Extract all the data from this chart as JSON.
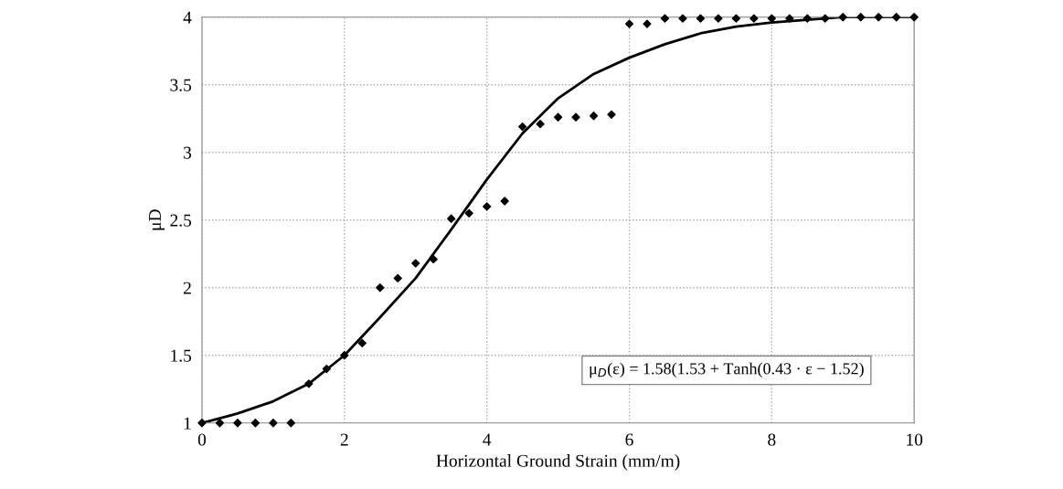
{
  "chart_data": {
    "type": "scatter",
    "xlabel": "Horizontal Ground Strain (mm/m)",
    "ylabel": "μD",
    "annotations": [
      "μ$_{D}$(ε) = 1.58(1.53 + Tanh(0.43 · ε − 1.52)"
    ],
    "xlim": [
      0,
      10
    ],
    "ylim": [
      1,
      4
    ],
    "xticks": [
      0,
      2,
      4,
      6,
      8,
      10
    ],
    "yticks": [
      1,
      1.5,
      2,
      2.5,
      3,
      3.5,
      4
    ],
    "grid": true,
    "series": [
      {
        "color": "#000000",
        "marker": "diamond",
        "x": [
          0,
          0.25,
          0.5,
          0.75,
          1,
          1.25,
          1.5,
          1.75,
          2,
          2.25,
          2.5,
          2.75,
          3,
          3.25,
          3.5,
          3.75,
          4,
          4.25,
          4.5,
          4.75,
          5,
          5.25,
          5.5,
          5.75,
          6,
          6.25,
          6.5,
          6.75,
          7,
          7.25,
          7.5,
          7.75,
          8,
          8.25,
          8.5,
          8.75,
          9,
          9.25,
          9.5,
          9.75,
          10
        ],
        "values": [
          1,
          1,
          1,
          1,
          1,
          1,
          1.29,
          1.4,
          1.5,
          1.59,
          2.0,
          2.07,
          2.18,
          2.21,
          2.51,
          2.55,
          2.6,
          2.64,
          3.19,
          3.21,
          3.26,
          3.26,
          3.27,
          3.28,
          3.95,
          3.95,
          3.99,
          3.99,
          3.99,
          3.99,
          3.99,
          3.99,
          3.99,
          3.99,
          3.99,
          3.99,
          4,
          4,
          4,
          4,
          4
        ]
      },
      {
        "type": "line",
        "color": "#000000",
        "line_style": "solid",
        "x": [
          0,
          0.5,
          1,
          1.5,
          2,
          2.5,
          3,
          3.5,
          4,
          4.5,
          5,
          5.5,
          6,
          6.5,
          7,
          7.5,
          8,
          8.5,
          9,
          10
        ],
        "values": [
          1.0,
          1.07,
          1.16,
          1.29,
          1.5,
          1.78,
          2.07,
          2.43,
          2.8,
          3.14,
          3.4,
          3.58,
          3.7,
          3.8,
          3.88,
          3.93,
          3.96,
          3.98,
          4.0,
          4.0
        ]
      }
    ]
  }
}
